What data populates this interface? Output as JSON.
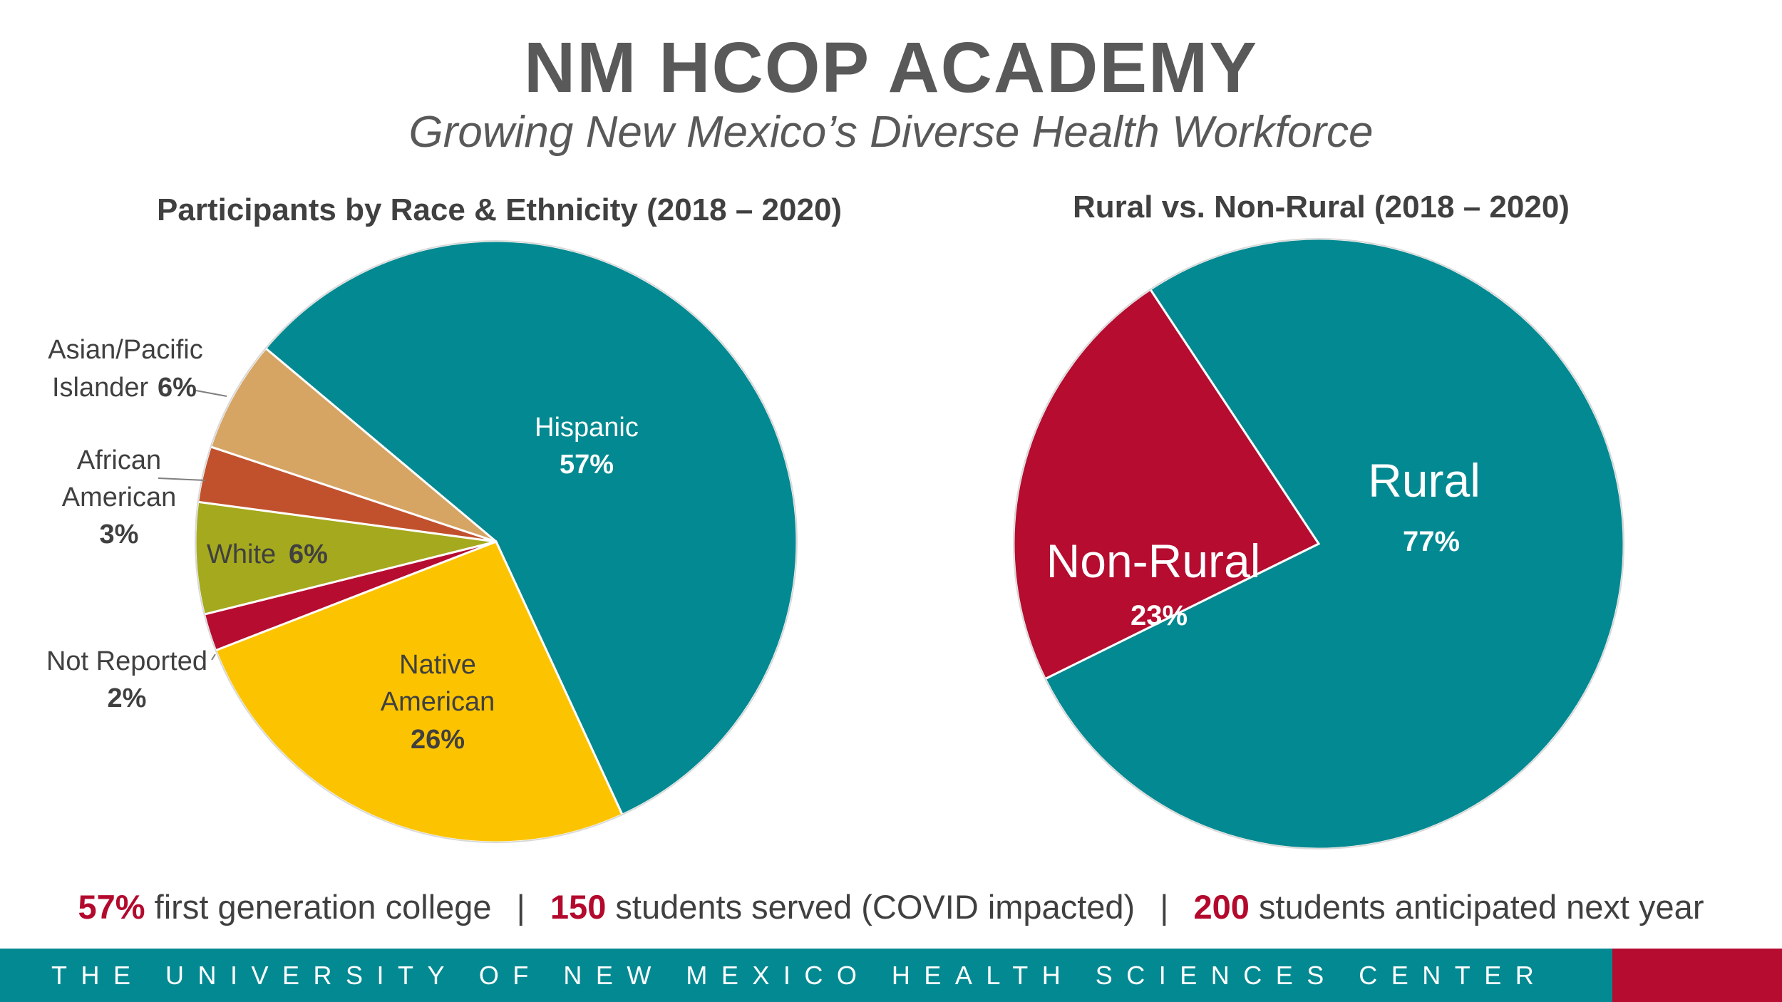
{
  "header": {
    "title": "NM HCOP ACADEMY",
    "subtitle": "Growing New Mexico’s Diverse Health Workforce"
  },
  "chart_data": [
    {
      "type": "pie",
      "title": "Participants by Race & Ethnicity (2018 – 2020)",
      "unit": "%",
      "slices": [
        {
          "name": "Hispanic",
          "value": 57,
          "color": "#038991"
        },
        {
          "name": "Native American",
          "value": 26,
          "color": "#fcc400"
        },
        {
          "name": "Not Reported",
          "value": 2,
          "color": "#b50c30"
        },
        {
          "name": "White",
          "value": 6,
          "color": "#a5a91d"
        },
        {
          "name": "African American",
          "value": 3,
          "color": "#c1512d"
        },
        {
          "name": "Asian/Pacific Islander",
          "value": 6,
          "color": "#d6a564"
        }
      ]
    },
    {
      "type": "pie",
      "title": "Rural vs. Non-Rural (2018 – 2020)",
      "unit": "%",
      "slices": [
        {
          "name": "Rural",
          "value": 77,
          "color": "#038991"
        },
        {
          "name": "Non-Rural",
          "value": 23,
          "color": "#b50c30"
        }
      ]
    }
  ],
  "labels": {
    "hispanic": {
      "name": "Hispanic",
      "pct": "57%"
    },
    "native": {
      "line1": "Native",
      "line2": "American",
      "pct": "26%"
    },
    "white": {
      "name": "White",
      "pct": "6%"
    },
    "african": {
      "line1": "African",
      "line2": "American",
      "pct": "3%"
    },
    "asian": {
      "line1": "Asian/Pacific",
      "line2": "Islander",
      "pct": "6%"
    },
    "notreported": {
      "name": "Not Reported",
      "pct": "2%"
    },
    "rural": {
      "name": "Rural",
      "pct": "77%"
    },
    "nonrural": {
      "name": "Non-Rural",
      "pct": "23%"
    }
  },
  "stats": {
    "first_gen_value": "57%",
    "first_gen_text": "first generation college",
    "served_value": "150",
    "served_text": "students served (COVID impacted)",
    "anticipated_value": "200",
    "anticipated_text": "students anticipated next year",
    "separator": "|"
  },
  "footer": {
    "text": "THE UNIVERSITY OF NEW MEXICO HEALTH SCIENCES CENTER"
  }
}
